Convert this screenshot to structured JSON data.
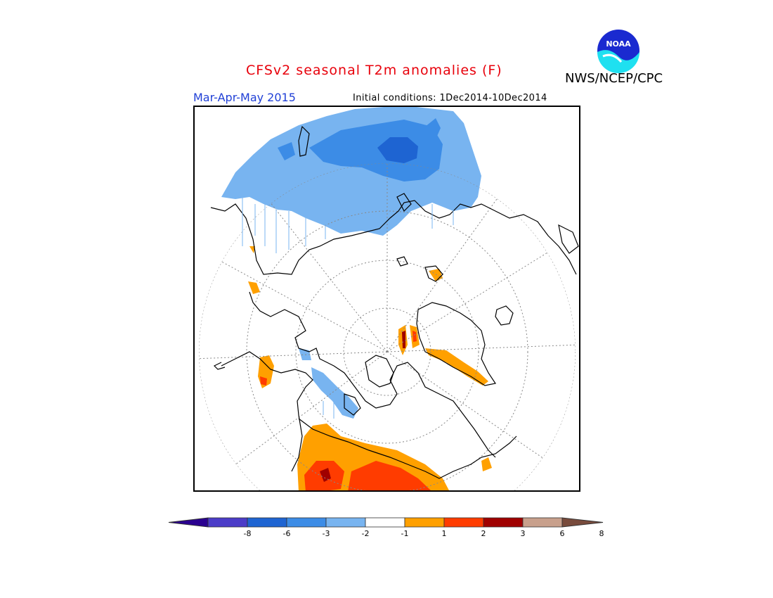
{
  "title": "CFSv2 seasonal T2m anomalies (F)",
  "season": "Mar-Apr-May 2015",
  "initial_conditions": "Initial conditions: 1Dec2014-10Dec2014",
  "org": "NWS/NCEP/CPC",
  "logo_text": "NOAA",
  "map": {
    "projection": "north polar stereographic",
    "anomaly_regions": [
      {
        "region": "Eurasia / Siberia",
        "category": "-2 to -1"
      },
      {
        "region": "Central Siberia core",
        "category": "-3 to -2"
      },
      {
        "region": "western Canada",
        "category": "-2 to -1"
      },
      {
        "region": "Greenland edges",
        "category": "1 to 3"
      },
      {
        "region": "United States",
        "category": "1 to 2"
      },
      {
        "region": "southern United States core",
        "category": "2 to 6"
      },
      {
        "region": "Alaska coast",
        "category": "1 to 3"
      }
    ]
  },
  "colorbar": {
    "labels": [
      "-8",
      "-6",
      "-3",
      "-2",
      "-1",
      "1",
      "2",
      "3",
      "6",
      "8"
    ],
    "colors": [
      "#2a0090",
      "#4b3cc8",
      "#1e64d2",
      "#3c8ce6",
      "#78b4f0",
      "#ffffff",
      "#ffa000",
      "#ff3c00",
      "#a00000",
      "#c8a08c",
      "#784b3c"
    ]
  },
  "colors": {
    "title": "#e8000b",
    "season": "#1f3fd6",
    "cold_light": "#78b4f0",
    "cold_mid": "#3c8ce6",
    "cold_dark": "#1e64d2",
    "warm_light": "#ffa000",
    "warm_mid": "#ff3c00",
    "warm_dark": "#a00000"
  }
}
